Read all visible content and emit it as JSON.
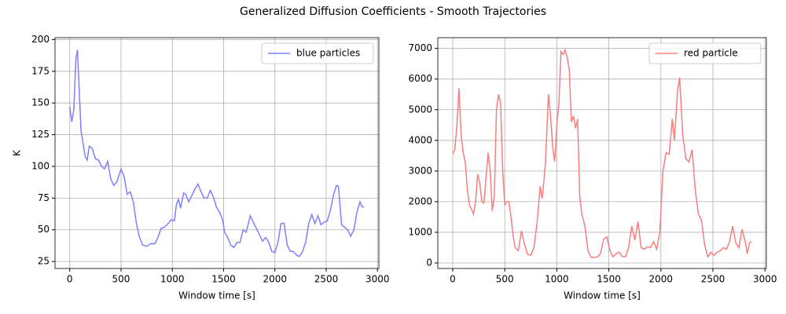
{
  "title": "Generalized Diffusion Coefficients - Smooth Trajectories",
  "chart_data": [
    {
      "type": "line",
      "xlabel": "Window time [s]",
      "ylabel": "K",
      "xlim": [
        -143.5,
        3013.5
      ],
      "ylim": [
        19.5,
        201.5
      ],
      "xticks": [
        0,
        500,
        1000,
        1500,
        2000,
        2500,
        3000
      ],
      "yticks": [
        25,
        50,
        75,
        100,
        125,
        150,
        175,
        200
      ],
      "grid": true,
      "legend": "upper right",
      "x": [
        0,
        20,
        40,
        60,
        75,
        90,
        110,
        130,
        150,
        170,
        190,
        220,
        250,
        280,
        310,
        340,
        370,
        400,
        430,
        460,
        500,
        530,
        560,
        590,
        620,
        650,
        680,
        710,
        750,
        790,
        830,
        860,
        890,
        920,
        960,
        990,
        1020,
        1040,
        1060,
        1080,
        1110,
        1130,
        1160,
        1190,
        1220,
        1250,
        1280,
        1310,
        1340,
        1370,
        1400,
        1430,
        1460,
        1490,
        1510,
        1540,
        1570,
        1600,
        1630,
        1660,
        1690,
        1720,
        1760,
        1790,
        1820,
        1850,
        1880,
        1910,
        1940,
        1970,
        2000,
        2030,
        2060,
        2090,
        2120,
        2150,
        2180,
        2210,
        2240,
        2270,
        2300,
        2330,
        2360,
        2390,
        2420,
        2450,
        2480,
        2510,
        2540,
        2570,
        2600,
        2620,
        2650,
        2680,
        2710,
        2740,
        2770,
        2800,
        2830,
        2850,
        2870
      ],
      "series": [
        {
          "name": "blue particles",
          "color": "#7f7fff",
          "values": [
            147,
            135,
            145,
            185,
            192,
            165,
            128,
            118,
            108,
            105,
            116,
            114,
            106,
            105,
            100,
            98,
            104,
            90,
            85,
            88,
            98,
            92,
            78,
            80,
            72,
            55,
            44,
            38,
            37,
            39,
            39,
            44,
            51,
            52,
            55,
            58,
            57,
            70,
            74,
            67,
            79,
            78,
            72,
            77,
            82,
            86,
            80,
            75,
            75,
            81,
            76,
            68,
            64,
            58,
            48,
            44,
            38,
            36,
            40,
            40,
            50,
            48,
            61,
            56,
            51,
            46,
            41,
            44,
            40,
            33,
            32,
            40,
            55,
            55,
            38,
            33,
            33,
            30,
            29,
            33,
            40,
            55,
            62,
            55,
            61,
            54,
            56,
            57,
            65,
            77,
            85,
            84,
            54,
            52,
            50,
            45,
            50,
            64,
            72,
            68,
            68
          ]
        }
      ]
    },
    {
      "type": "line",
      "xlabel": "Window time [s]",
      "xlim": [
        -143.5,
        3013.5
      ],
      "ylim": [
        -180,
        7350
      ],
      "xticks": [
        0,
        500,
        1000,
        1500,
        2000,
        2500,
        3000
      ],
      "yticks": [
        0,
        1000,
        2000,
        3000,
        4000,
        5000,
        6000,
        7000
      ],
      "grid": true,
      "legend": "upper right",
      "x": [
        0,
        20,
        40,
        60,
        80,
        100,
        120,
        140,
        160,
        180,
        200,
        220,
        240,
        260,
        280,
        300,
        320,
        340,
        360,
        380,
        400,
        420,
        440,
        460,
        480,
        500,
        520,
        540,
        560,
        580,
        600,
        630,
        660,
        690,
        720,
        750,
        780,
        810,
        840,
        860,
        890,
        920,
        940,
        960,
        980,
        1000,
        1020,
        1040,
        1060,
        1080,
        1100,
        1120,
        1140,
        1160,
        1180,
        1200,
        1220,
        1240,
        1270,
        1300,
        1330,
        1360,
        1390,
        1420,
        1450,
        1480,
        1510,
        1540,
        1570,
        1600,
        1630,
        1660,
        1690,
        1720,
        1750,
        1780,
        1810,
        1840,
        1870,
        1900,
        1930,
        1960,
        1990,
        2020,
        2050,
        2080,
        2110,
        2130,
        2160,
        2180,
        2210,
        2240,
        2270,
        2300,
        2330,
        2360,
        2390,
        2420,
        2450,
        2480,
        2510,
        2540,
        2570,
        2600,
        2630,
        2660,
        2690,
        2720,
        2750,
        2780,
        2810,
        2830,
        2850,
        2870
      ],
      "series": [
        {
          "name": "red particle",
          "color": "#f77f7f",
          "values": [
            3550,
            3700,
            4500,
            5700,
            4200,
            3600,
            3300,
            2400,
            1900,
            1750,
            1600,
            2000,
            2900,
            2600,
            2000,
            1950,
            2800,
            3600,
            3000,
            1700,
            2200,
            5000,
            5500,
            5200,
            3000,
            1900,
            2000,
            2000,
            1500,
            900,
            500,
            400,
            1050,
            600,
            280,
            250,
            500,
            1300,
            2500,
            2100,
            3200,
            5500,
            4800,
            3800,
            3300,
            4500,
            5200,
            6900,
            6800,
            6950,
            6700,
            6300,
            4600,
            4800,
            4400,
            4700,
            2200,
            1600,
            1200,
            400,
            180,
            180,
            200,
            300,
            780,
            850,
            400,
            200,
            300,
            350,
            200,
            200,
            500,
            1200,
            750,
            1350,
            500,
            450,
            530,
            500,
            700,
            450,
            1000,
            3000,
            3600,
            3550,
            4700,
            4000,
            5600,
            6050,
            4200,
            3400,
            3300,
            3700,
            2400,
            1600,
            1400,
            600,
            200,
            350,
            250,
            350,
            400,
            500,
            450,
            700,
            1200,
            650,
            500,
            1100,
            700,
            300,
            650,
            700
          ]
        }
      ]
    }
  ]
}
